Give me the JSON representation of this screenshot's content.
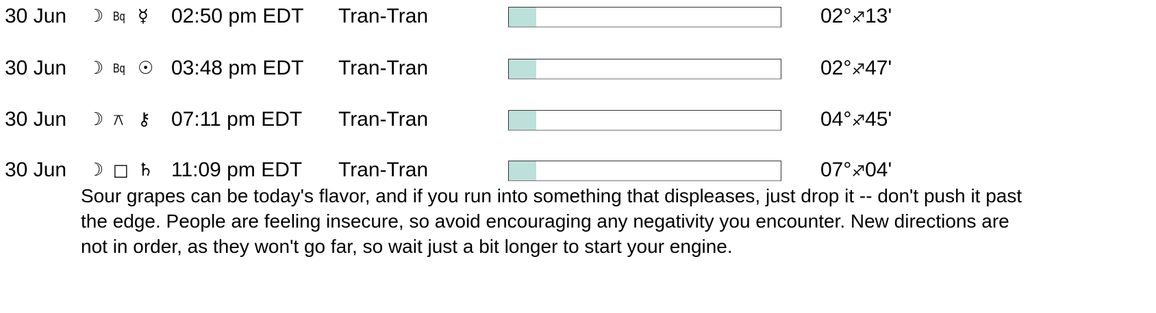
{
  "colors": {
    "bar_fill": "#bde0da"
  },
  "aspects": [
    {
      "date": "30 Jun",
      "planet1": "☽",
      "aspect": "Bq",
      "aspect_icon": "biquintile-icon",
      "planet2": "☿",
      "planet2_icon": "mercury-icon",
      "time": "02:50 pm EDT",
      "type": "Tran-Tran",
      "strength_percent": 10,
      "degree": "02°",
      "sign": "♐",
      "minutes": "13'"
    },
    {
      "date": "30 Jun",
      "planet1": "☽",
      "aspect": "Bq",
      "aspect_icon": "biquintile-icon",
      "planet2": "☉",
      "planet2_icon": "sun-icon",
      "time": "03:48 pm EDT",
      "type": "Tran-Tran",
      "strength_percent": 10,
      "degree": "02°",
      "sign": "♐",
      "minutes": "47'"
    },
    {
      "date": "30 Jun",
      "planet1": "☽",
      "aspect": "⚻",
      "aspect_icon": "quincunx-icon",
      "planet2": "⚷",
      "planet2_icon": "chiron-icon",
      "time": "07:11 pm EDT",
      "type": "Tran-Tran",
      "strength_percent": 10,
      "degree": "04°",
      "sign": "♐",
      "minutes": "45'"
    },
    {
      "date": "30 Jun",
      "planet1": "☽",
      "aspect": "□",
      "aspect_icon": "square-icon",
      "planet2": "♄",
      "planet2_icon": "saturn-icon",
      "time": "11:09 pm EDT",
      "type": "Tran-Tran",
      "strength_percent": 10,
      "degree": "07°",
      "sign": "♐",
      "minutes": "04'"
    }
  ],
  "description": "Sour grapes can be today's flavor, and if you run into something that displeases, just drop it -- don't push it past the edge. People are feeling insecure, so avoid encouraging any negativity you encounter. New directions are not in order, as they won't go far, so wait just a bit longer to start your engine."
}
